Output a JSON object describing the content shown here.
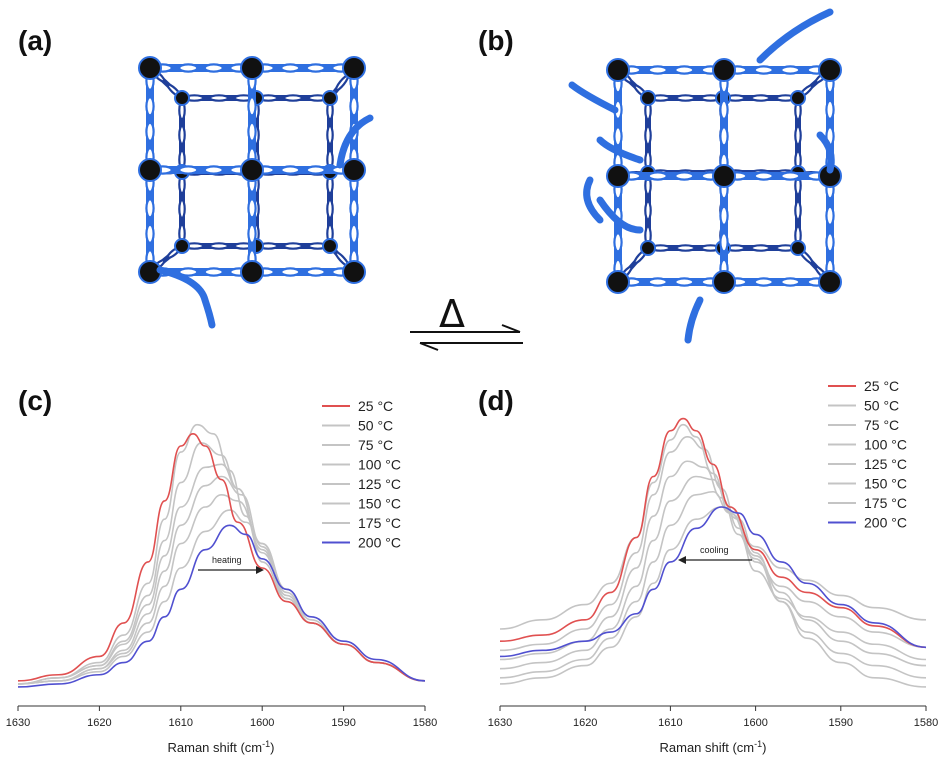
{
  "panels": {
    "a": "(a)",
    "b": "(b)",
    "c": "(c)",
    "d": "(d)"
  },
  "reaction_symbol": "Δ",
  "colors": {
    "framework_blue": "#2f6fe0",
    "framework_dark": "#1f3f9a",
    "node_black": "#111111",
    "curve_red": "#e05050",
    "curve_grey": "#c4c4c4",
    "curve_blue": "#5050d0"
  },
  "chart_data": [
    {
      "panel": "(c)",
      "type": "line",
      "xlabel": "Raman shift (cm",
      "xlabel_sup": "-1",
      "xlabel_close": ")",
      "xlim": [
        1630,
        1580
      ],
      "x_reversed": true,
      "x_ticks": [
        "1630",
        "1620",
        "1610",
        "1600",
        "1590",
        "1580"
      ],
      "y_ticks_shown": false,
      "annotation": "heating",
      "legend_position": "top-right",
      "series": [
        {
          "name": "25 °C",
          "color": "#e05050",
          "x": [
            1630,
            1625,
            1620,
            1617,
            1614,
            1612,
            1610,
            1608.5,
            1607,
            1605,
            1603,
            1600,
            1597,
            1594,
            1590,
            1586,
            1580
          ],
          "y": [
            0.03,
            0.05,
            0.11,
            0.22,
            0.42,
            0.62,
            0.8,
            0.84,
            0.8,
            0.69,
            0.55,
            0.4,
            0.29,
            0.22,
            0.15,
            0.09,
            0.03
          ]
        },
        {
          "name": "50 °C",
          "color": "#c4c4c4",
          "x": [
            1630,
            1625,
            1620,
            1617,
            1614,
            1612,
            1610,
            1608,
            1606,
            1604,
            1602,
            1600,
            1597,
            1594,
            1590,
            1586,
            1580
          ],
          "y": [
            0.02,
            0.04,
            0.09,
            0.18,
            0.35,
            0.56,
            0.78,
            0.87,
            0.84,
            0.72,
            0.57,
            0.42,
            0.3,
            0.22,
            0.15,
            0.09,
            0.03
          ]
        },
        {
          "name": "75 °C",
          "color": "#c4c4c4",
          "x": [
            1630,
            1625,
            1620,
            1617,
            1614,
            1612,
            1610,
            1607.5,
            1605,
            1603,
            1600,
            1597,
            1594,
            1590,
            1586,
            1580
          ],
          "y": [
            0.02,
            0.04,
            0.08,
            0.16,
            0.31,
            0.49,
            0.68,
            0.81,
            0.77,
            0.66,
            0.45,
            0.3,
            0.22,
            0.15,
            0.09,
            0.03
          ]
        },
        {
          "name": "100 °C",
          "color": "#c4c4c4",
          "x": [
            1630,
            1625,
            1620,
            1617,
            1614,
            1612,
            1610,
            1607,
            1605,
            1603,
            1600,
            1597,
            1594,
            1590,
            1586,
            1580
          ],
          "y": [
            0.02,
            0.04,
            0.08,
            0.15,
            0.28,
            0.44,
            0.6,
            0.73,
            0.74,
            0.66,
            0.46,
            0.3,
            0.22,
            0.15,
            0.09,
            0.03
          ]
        },
        {
          "name": "125 °C",
          "color": "#c4c4c4",
          "x": [
            1630,
            1625,
            1620,
            1617,
            1614,
            1612,
            1610,
            1607,
            1605,
            1602.5,
            1600,
            1597,
            1594,
            1590,
            1586,
            1580
          ],
          "y": [
            0.02,
            0.03,
            0.07,
            0.13,
            0.25,
            0.39,
            0.54,
            0.67,
            0.7,
            0.64,
            0.47,
            0.31,
            0.22,
            0.15,
            0.09,
            0.03
          ]
        },
        {
          "name": "150 °C",
          "color": "#c4c4c4",
          "x": [
            1630,
            1625,
            1620,
            1617,
            1614,
            1612,
            1610,
            1607,
            1605,
            1603,
            1600,
            1597,
            1594,
            1590,
            1586,
            1580
          ],
          "y": [
            0.02,
            0.03,
            0.07,
            0.12,
            0.22,
            0.34,
            0.48,
            0.6,
            0.64,
            0.62,
            0.48,
            0.32,
            0.22,
            0.15,
            0.09,
            0.03
          ]
        },
        {
          "name": "175 °C",
          "color": "#c4c4c4",
          "x": [
            1630,
            1625,
            1620,
            1617,
            1614,
            1612,
            1610,
            1607,
            1604,
            1602,
            1600,
            1597,
            1594,
            1590,
            1586,
            1580
          ],
          "y": [
            0.02,
            0.03,
            0.06,
            0.11,
            0.19,
            0.29,
            0.4,
            0.52,
            0.59,
            0.55,
            0.48,
            0.33,
            0.23,
            0.15,
            0.09,
            0.03
          ]
        },
        {
          "name": "200 °C",
          "color": "#5050d0",
          "x": [
            1630,
            1625,
            1620,
            1617,
            1614,
            1612,
            1610,
            1607,
            1604,
            1602,
            1600,
            1597,
            1594,
            1590,
            1586,
            1580
          ],
          "y": [
            0.01,
            0.02,
            0.05,
            0.09,
            0.16,
            0.24,
            0.33,
            0.46,
            0.54,
            0.51,
            0.43,
            0.33,
            0.24,
            0.16,
            0.1,
            0.03
          ]
        }
      ]
    },
    {
      "panel": "(d)",
      "type": "line",
      "xlabel": "Raman shift (cm",
      "xlabel_sup": "-1",
      "xlabel_close": ")",
      "xlim": [
        1630,
        1580
      ],
      "x_reversed": true,
      "x_ticks": [
        "1630",
        "1620",
        "1610",
        "1600",
        "1590",
        "1580"
      ],
      "y_ticks_shown": false,
      "annotation": "cooling",
      "legend_position": "top-right",
      "series": [
        {
          "name": "25 °C",
          "color": "#e05050",
          "x": [
            1630,
            1625,
            1620,
            1617,
            1614,
            1612,
            1610,
            1608.5,
            1607,
            1605,
            1603,
            1600,
            1597,
            1594,
            1590,
            1586,
            1580
          ],
          "y": [
            0.16,
            0.18,
            0.23,
            0.32,
            0.5,
            0.7,
            0.85,
            0.89,
            0.85,
            0.74,
            0.6,
            0.46,
            0.37,
            0.32,
            0.27,
            0.21,
            0.14
          ]
        },
        {
          "name": "50 °C",
          "color": "#c4c4c4",
          "x": [
            1630,
            1625,
            1620,
            1617,
            1614,
            1612,
            1610,
            1608.5,
            1607,
            1605,
            1603,
            1600,
            1597,
            1594,
            1590,
            1586,
            1580
          ],
          "y": [
            0.2,
            0.23,
            0.28,
            0.35,
            0.5,
            0.68,
            0.82,
            0.87,
            0.83,
            0.71,
            0.58,
            0.47,
            0.4,
            0.36,
            0.31,
            0.27,
            0.23
          ]
        },
        {
          "name": "75 °C",
          "color": "#c4c4c4",
          "x": [
            1630,
            1625,
            1620,
            1617,
            1614,
            1612,
            1610,
            1608,
            1606,
            1604,
            1602,
            1600,
            1597,
            1594,
            1590,
            1586,
            1580
          ],
          "y": [
            0.13,
            0.15,
            0.2,
            0.28,
            0.45,
            0.64,
            0.78,
            0.83,
            0.79,
            0.66,
            0.53,
            0.42,
            0.34,
            0.29,
            0.24,
            0.19,
            0.14
          ]
        },
        {
          "name": "100 °C",
          "color": "#c4c4c4",
          "x": [
            1630,
            1625,
            1620,
            1617,
            1614,
            1612,
            1610,
            1608,
            1606,
            1604,
            1602,
            1600,
            1597,
            1594,
            1590,
            1586,
            1580
          ],
          "y": [
            0.1,
            0.12,
            0.16,
            0.24,
            0.4,
            0.57,
            0.7,
            0.75,
            0.73,
            0.63,
            0.51,
            0.39,
            0.3,
            0.24,
            0.19,
            0.15,
            0.1
          ]
        },
        {
          "name": "125 °C",
          "color": "#c4c4c4",
          "x": [
            1630,
            1625,
            1620,
            1617,
            1614,
            1612,
            1610,
            1607,
            1605,
            1603,
            1600,
            1597,
            1594,
            1590,
            1586,
            1580
          ],
          "y": [
            0.07,
            0.09,
            0.13,
            0.2,
            0.34,
            0.49,
            0.62,
            0.7,
            0.69,
            0.6,
            0.44,
            0.32,
            0.23,
            0.16,
            0.12,
            0.08
          ]
        },
        {
          "name": "150 °C",
          "color": "#c4c4c4",
          "x": [
            1630,
            1625,
            1620,
            1617,
            1614,
            1612,
            1610,
            1607,
            1605,
            1603,
            1600,
            1597,
            1594,
            1590,
            1586,
            1580
          ],
          "y": [
            0.04,
            0.06,
            0.1,
            0.17,
            0.29,
            0.42,
            0.54,
            0.64,
            0.65,
            0.58,
            0.43,
            0.29,
            0.19,
            0.12,
            0.08,
            0.04
          ]
        },
        {
          "name": "175 °C",
          "color": "#c4c4c4",
          "x": [
            1630,
            1625,
            1620,
            1617,
            1614,
            1612,
            1610,
            1607,
            1604,
            1602,
            1600,
            1597,
            1594,
            1590,
            1586,
            1580
          ],
          "y": [
            0.02,
            0.04,
            0.08,
            0.14,
            0.24,
            0.35,
            0.46,
            0.56,
            0.6,
            0.56,
            0.45,
            0.29,
            0.17,
            0.09,
            0.04,
            0.01
          ]
        },
        {
          "name": "200 °C",
          "color": "#5050d0",
          "x": [
            1630,
            1625,
            1620,
            1617,
            1614,
            1612,
            1610,
            1607,
            1604,
            1602,
            1600,
            1597,
            1594,
            1590,
            1586,
            1580
          ],
          "y": [
            0.11,
            0.13,
            0.16,
            0.19,
            0.25,
            0.33,
            0.42,
            0.53,
            0.6,
            0.58,
            0.51,
            0.42,
            0.35,
            0.28,
            0.22,
            0.14
          ]
        }
      ]
    }
  ]
}
